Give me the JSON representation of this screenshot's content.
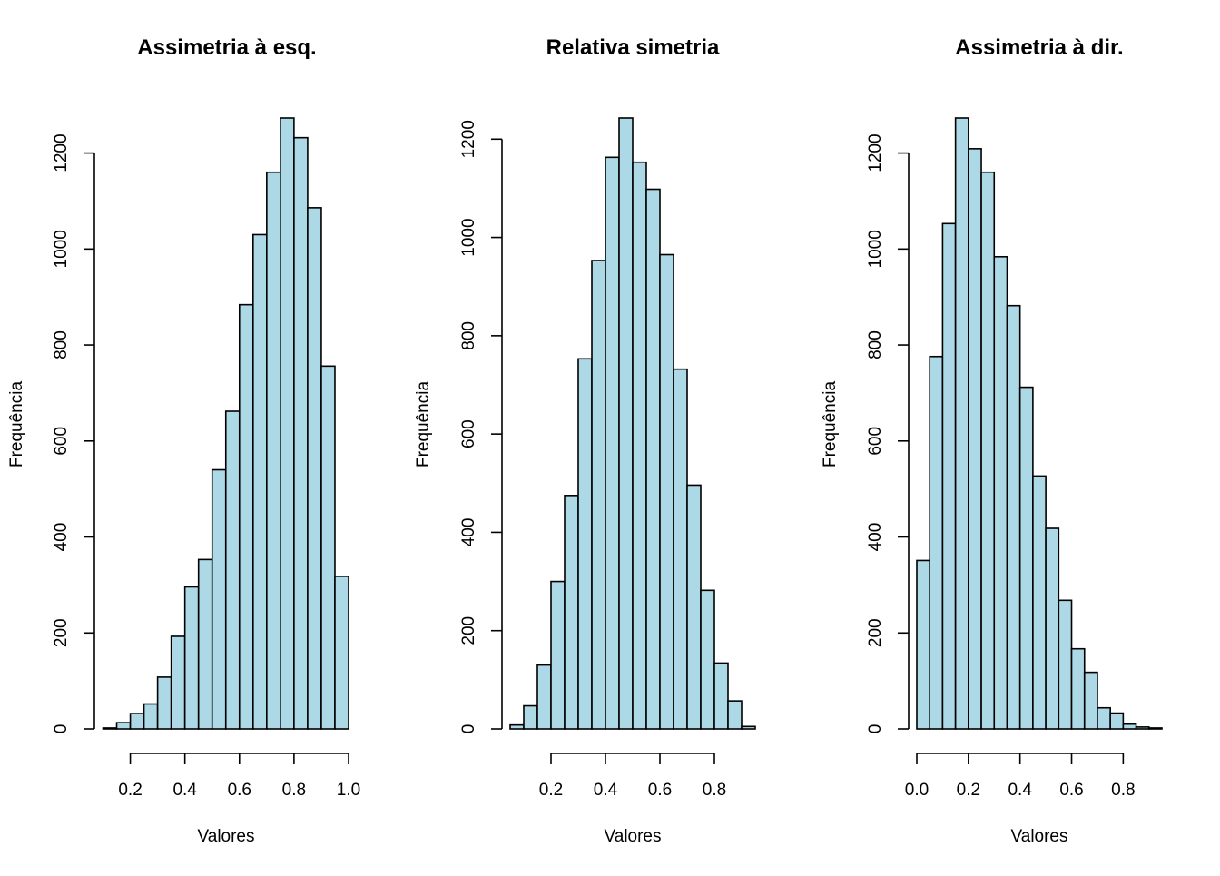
{
  "chart_data": [
    {
      "type": "bar",
      "title": "Assimetria à esq.",
      "xlabel": "Valores",
      "ylabel": "Frequência",
      "bin_edges": [
        0.1,
        0.15,
        0.2,
        0.25,
        0.3,
        0.35,
        0.4,
        0.45,
        0.5,
        0.55,
        0.6,
        0.65,
        0.7,
        0.75,
        0.8,
        0.85,
        0.9,
        0.95,
        1.0
      ],
      "values": [
        2,
        13,
        32,
        52,
        108,
        193,
        296,
        353,
        540,
        662,
        884,
        1030,
        1160,
        1273,
        1232,
        1086,
        756,
        318
      ],
      "xticks": [
        0.2,
        0.4,
        0.6,
        0.8,
        1.0
      ],
      "xtick_labels": [
        "0.2",
        "0.4",
        "0.6",
        "0.8",
        "1.0"
      ],
      "yticks": [
        0,
        200,
        400,
        600,
        800,
        1000,
        1200
      ],
      "ytick_labels": [
        "0",
        "200",
        "400",
        "600",
        "800",
        "1000",
        "1200"
      ],
      "xlim": [
        0.1,
        1.0
      ],
      "ylim": [
        0,
        1273
      ],
      "bar_color": "#add8e6",
      "grid": false
    },
    {
      "type": "bar",
      "title": "Relativa simetria",
      "xlabel": "Valores",
      "ylabel": "Frequência",
      "bin_edges": [
        0.05,
        0.1,
        0.15,
        0.2,
        0.25,
        0.3,
        0.35,
        0.4,
        0.45,
        0.5,
        0.55,
        0.6,
        0.65,
        0.7,
        0.75,
        0.8,
        0.85,
        0.9,
        0.95
      ],
      "values": [
        8,
        47,
        130,
        300,
        475,
        753,
        953,
        1163,
        1243,
        1153,
        1098,
        965,
        732,
        496,
        282,
        134,
        57,
        5
      ],
      "xticks": [
        0.2,
        0.4,
        0.6,
        0.8
      ],
      "xtick_labels": [
        "0.2",
        "0.4",
        "0.6",
        "0.8"
      ],
      "yticks": [
        0,
        200,
        400,
        600,
        800,
        1000,
        1200
      ],
      "ytick_labels": [
        "0",
        "200",
        "400",
        "600",
        "800",
        "1000",
        "1200"
      ],
      "xlim": [
        0.05,
        0.95
      ],
      "ylim": [
        0,
        1243
      ],
      "bar_color": "#add8e6",
      "grid": false
    },
    {
      "type": "bar",
      "title": "Assimetria à dir.",
      "xlabel": "Valores",
      "ylabel": "Frequência",
      "bin_edges": [
        0.0,
        0.05,
        0.1,
        0.15,
        0.2,
        0.25,
        0.3,
        0.35,
        0.4,
        0.45,
        0.5,
        0.55,
        0.6,
        0.65,
        0.7,
        0.75,
        0.8,
        0.85,
        0.9,
        0.95
      ],
      "values": [
        351,
        776,
        1053,
        1273,
        1209,
        1160,
        984,
        882,
        712,
        527,
        418,
        268,
        167,
        118,
        44,
        33,
        10,
        4,
        2
      ],
      "xticks": [
        0.0,
        0.2,
        0.4,
        0.6,
        0.8
      ],
      "xtick_labels": [
        "0.0",
        "0.2",
        "0.4",
        "0.6",
        "0.8"
      ],
      "yticks": [
        0,
        200,
        400,
        600,
        800,
        1000,
        1200
      ],
      "ytick_labels": [
        "0",
        "200",
        "400",
        "600",
        "800",
        "1000",
        "1200"
      ],
      "xlim": [
        0.0,
        0.95
      ],
      "ylim": [
        0,
        1273
      ],
      "bar_color": "#add8e6",
      "grid": false
    }
  ]
}
